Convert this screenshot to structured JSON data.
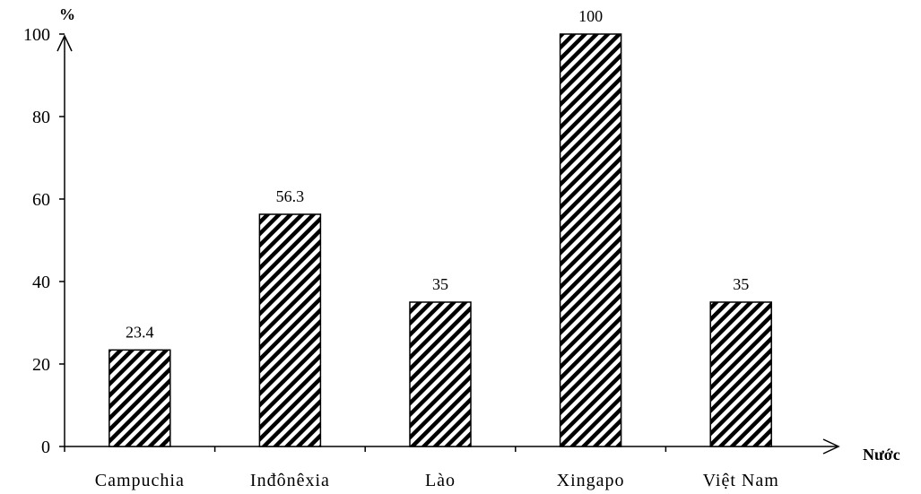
{
  "chart_data": {
    "type": "bar",
    "categories": [
      "Campuchia",
      "Inđônêxia",
      "Lào",
      "Xingapo",
      "Việt Nam"
    ],
    "values": [
      23.4,
      56.3,
      35,
      100,
      35
    ],
    "data_labels": [
      "23.4",
      "56.3",
      "35",
      "100",
      "35"
    ],
    "ylabel": "%",
    "xlabel": "Nước",
    "ylim": [
      0,
      100
    ],
    "yticks": [
      0,
      20,
      40,
      60,
      80,
      100
    ],
    "grid": false,
    "legend": "none",
    "bar_pattern": "diagonal-hatch",
    "colors": {
      "bar_stroke": "#000000",
      "hatch": "#000000",
      "background": "#ffffff"
    }
  }
}
